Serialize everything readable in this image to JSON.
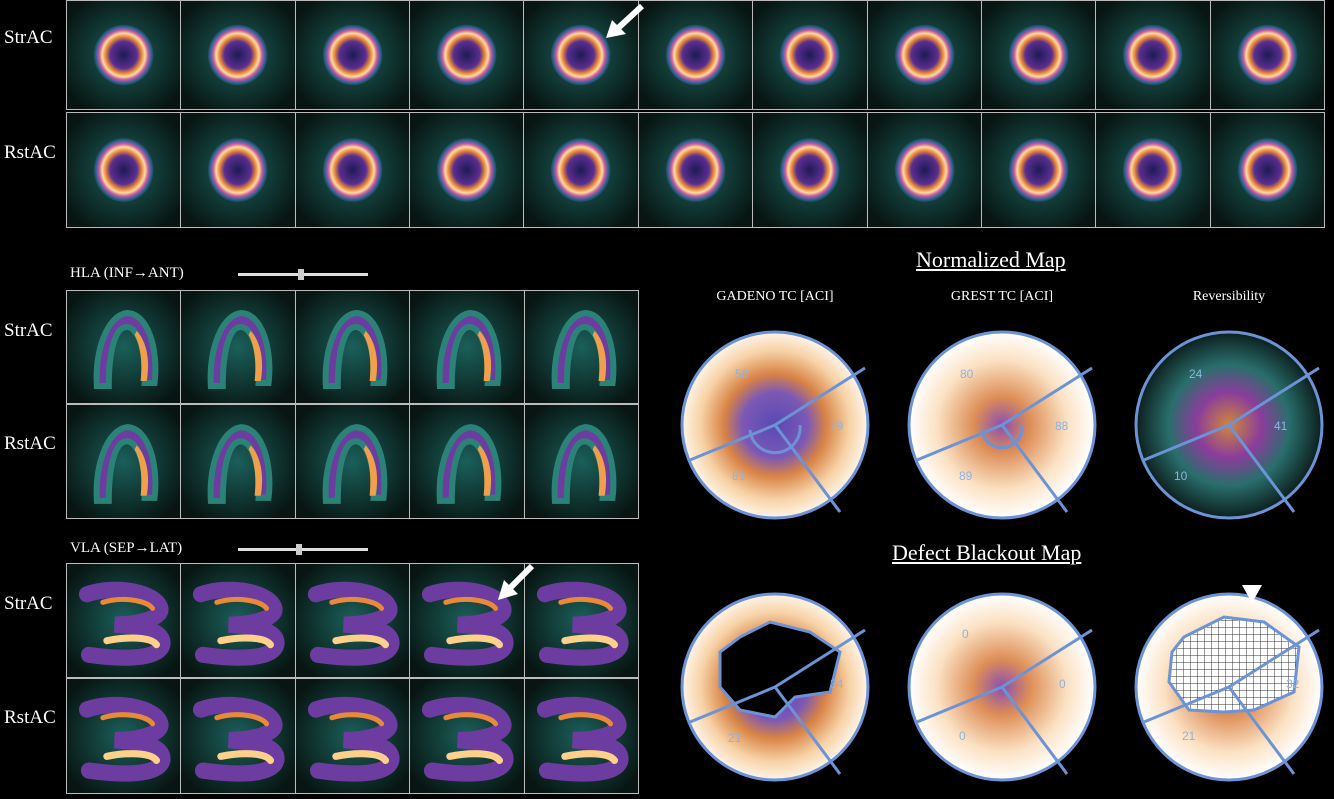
{
  "row_labels": {
    "sa_stress": "StrAC",
    "sa_rest": "RstAC",
    "hla_stress": "StrAC",
    "hla_rest": "RstAC",
    "vla_stress": "StrAC",
    "vla_rest": "RstAC"
  },
  "hla": {
    "label": "HLA (INF→ANT)"
  },
  "vla": {
    "label": "VLA (SEP→LAT)"
  },
  "normalized_map": {
    "title": "Normalized Map",
    "columns": [
      "GADENO TC [ACI]",
      "GREST TC [ACI]",
      "Reversibility"
    ],
    "values": [
      {
        "top": "58",
        "right": "79",
        "bottom": "81"
      },
      {
        "top": "80",
        "right": "88",
        "bottom": "89"
      },
      {
        "top": "24",
        "right": "41",
        "bottom": "10"
      }
    ]
  },
  "defect_map": {
    "title": "Defect Blackout Map",
    "values": [
      {
        "top": "",
        "right": "34",
        "bottom": "21"
      },
      {
        "top": "0",
        "right": "0",
        "bottom": "0"
      },
      {
        "top": "",
        "right": "32",
        "bottom": "21"
      }
    ]
  },
  "colors": {
    "background": "#000000",
    "tissue_low": "#1c6f62",
    "tissue_mid": "#6a3a9a",
    "tissue_high": "#e8832c",
    "tissue_max": "#fff2dc",
    "segment_line": "#6c93d6"
  },
  "icons": [
    "arrow-marker-icon",
    "arrowhead-marker-icon",
    "slider-knob-icon"
  ]
}
